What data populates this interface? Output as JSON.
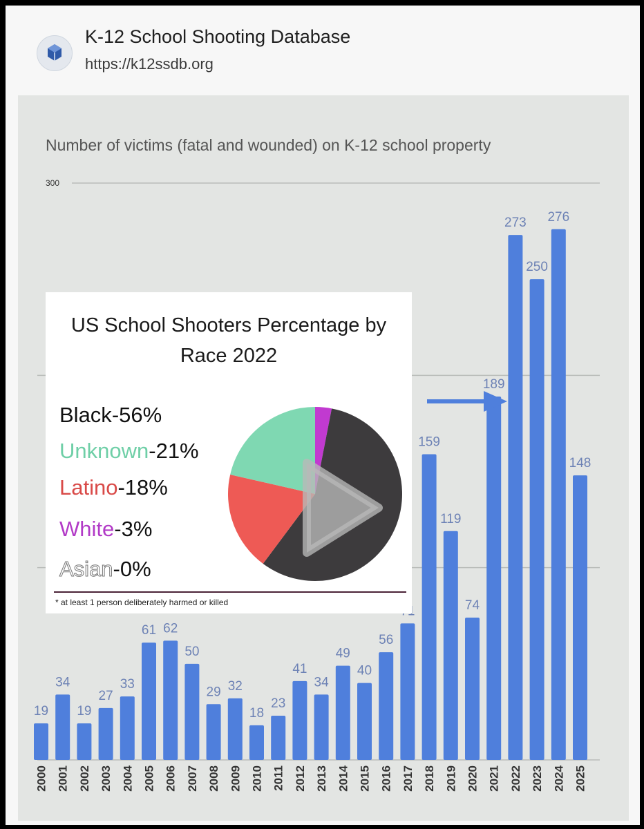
{
  "header": {
    "title": "K-12 School Shooting Database",
    "url": "https://k12ssdb.org",
    "logo_icon": "k12ssdb-logo-icon"
  },
  "chart_data": [
    {
      "type": "bar",
      "title": "Number of victims (fatal and wounded) on K-12 school property",
      "ytick_labels": [
        "300"
      ],
      "ylim": [
        0,
        300
      ],
      "grid": true,
      "color": "#4f7fdc",
      "categories": [
        "2000",
        "2001",
        "2002",
        "2003",
        "2004",
        "2005",
        "2006",
        "2007",
        "2008",
        "2009",
        "2010",
        "2011",
        "2012",
        "2013",
        "2014",
        "2015",
        "2016",
        "2017",
        "2018",
        "2019",
        "2020",
        "2021",
        "2022",
        "2023",
        "2024",
        "2025"
      ],
      "values": [
        19,
        34,
        19,
        27,
        33,
        61,
        62,
        50,
        29,
        32,
        18,
        23,
        41,
        34,
        49,
        40,
        56,
        71,
        159,
        119,
        74,
        189,
        273,
        250,
        276,
        148
      ],
      "value_labels": [
        "19",
        "34",
        "19",
        "27",
        "33",
        "61",
        "62",
        "50",
        "29",
        "32",
        "18",
        "23",
        "41",
        "34",
        "49",
        "40",
        "56",
        "71",
        "159",
        "119",
        "74",
        "189",
        "273",
        "250",
        "276",
        "148"
      ]
    },
    {
      "type": "pie",
      "title": "US School Shooters Percentage by Race 2022",
      "slices": [
        {
          "label": "Black",
          "value": 56,
          "text": "-56%",
          "color": "#3d3b3d"
        },
        {
          "label": "Unknown",
          "value": 21,
          "text": "-21%",
          "color": "#7fd8b2"
        },
        {
          "label": "Latino",
          "value": 18,
          "text": "-18%",
          "color": "#ee5a55"
        },
        {
          "label": "White",
          "value": 3,
          "text": "-3%",
          "color": "#c13ad0"
        },
        {
          "label": "Asian",
          "value": 0,
          "text": "-0%",
          "color": "#ffffff"
        }
      ],
      "footnote": "* at least 1 person deliberately harmed or killed"
    }
  ],
  "overlay": {
    "play_icon": "play-icon",
    "arrow_icon": "arrow-right-icon",
    "accent_color": "#4f7fdc"
  }
}
